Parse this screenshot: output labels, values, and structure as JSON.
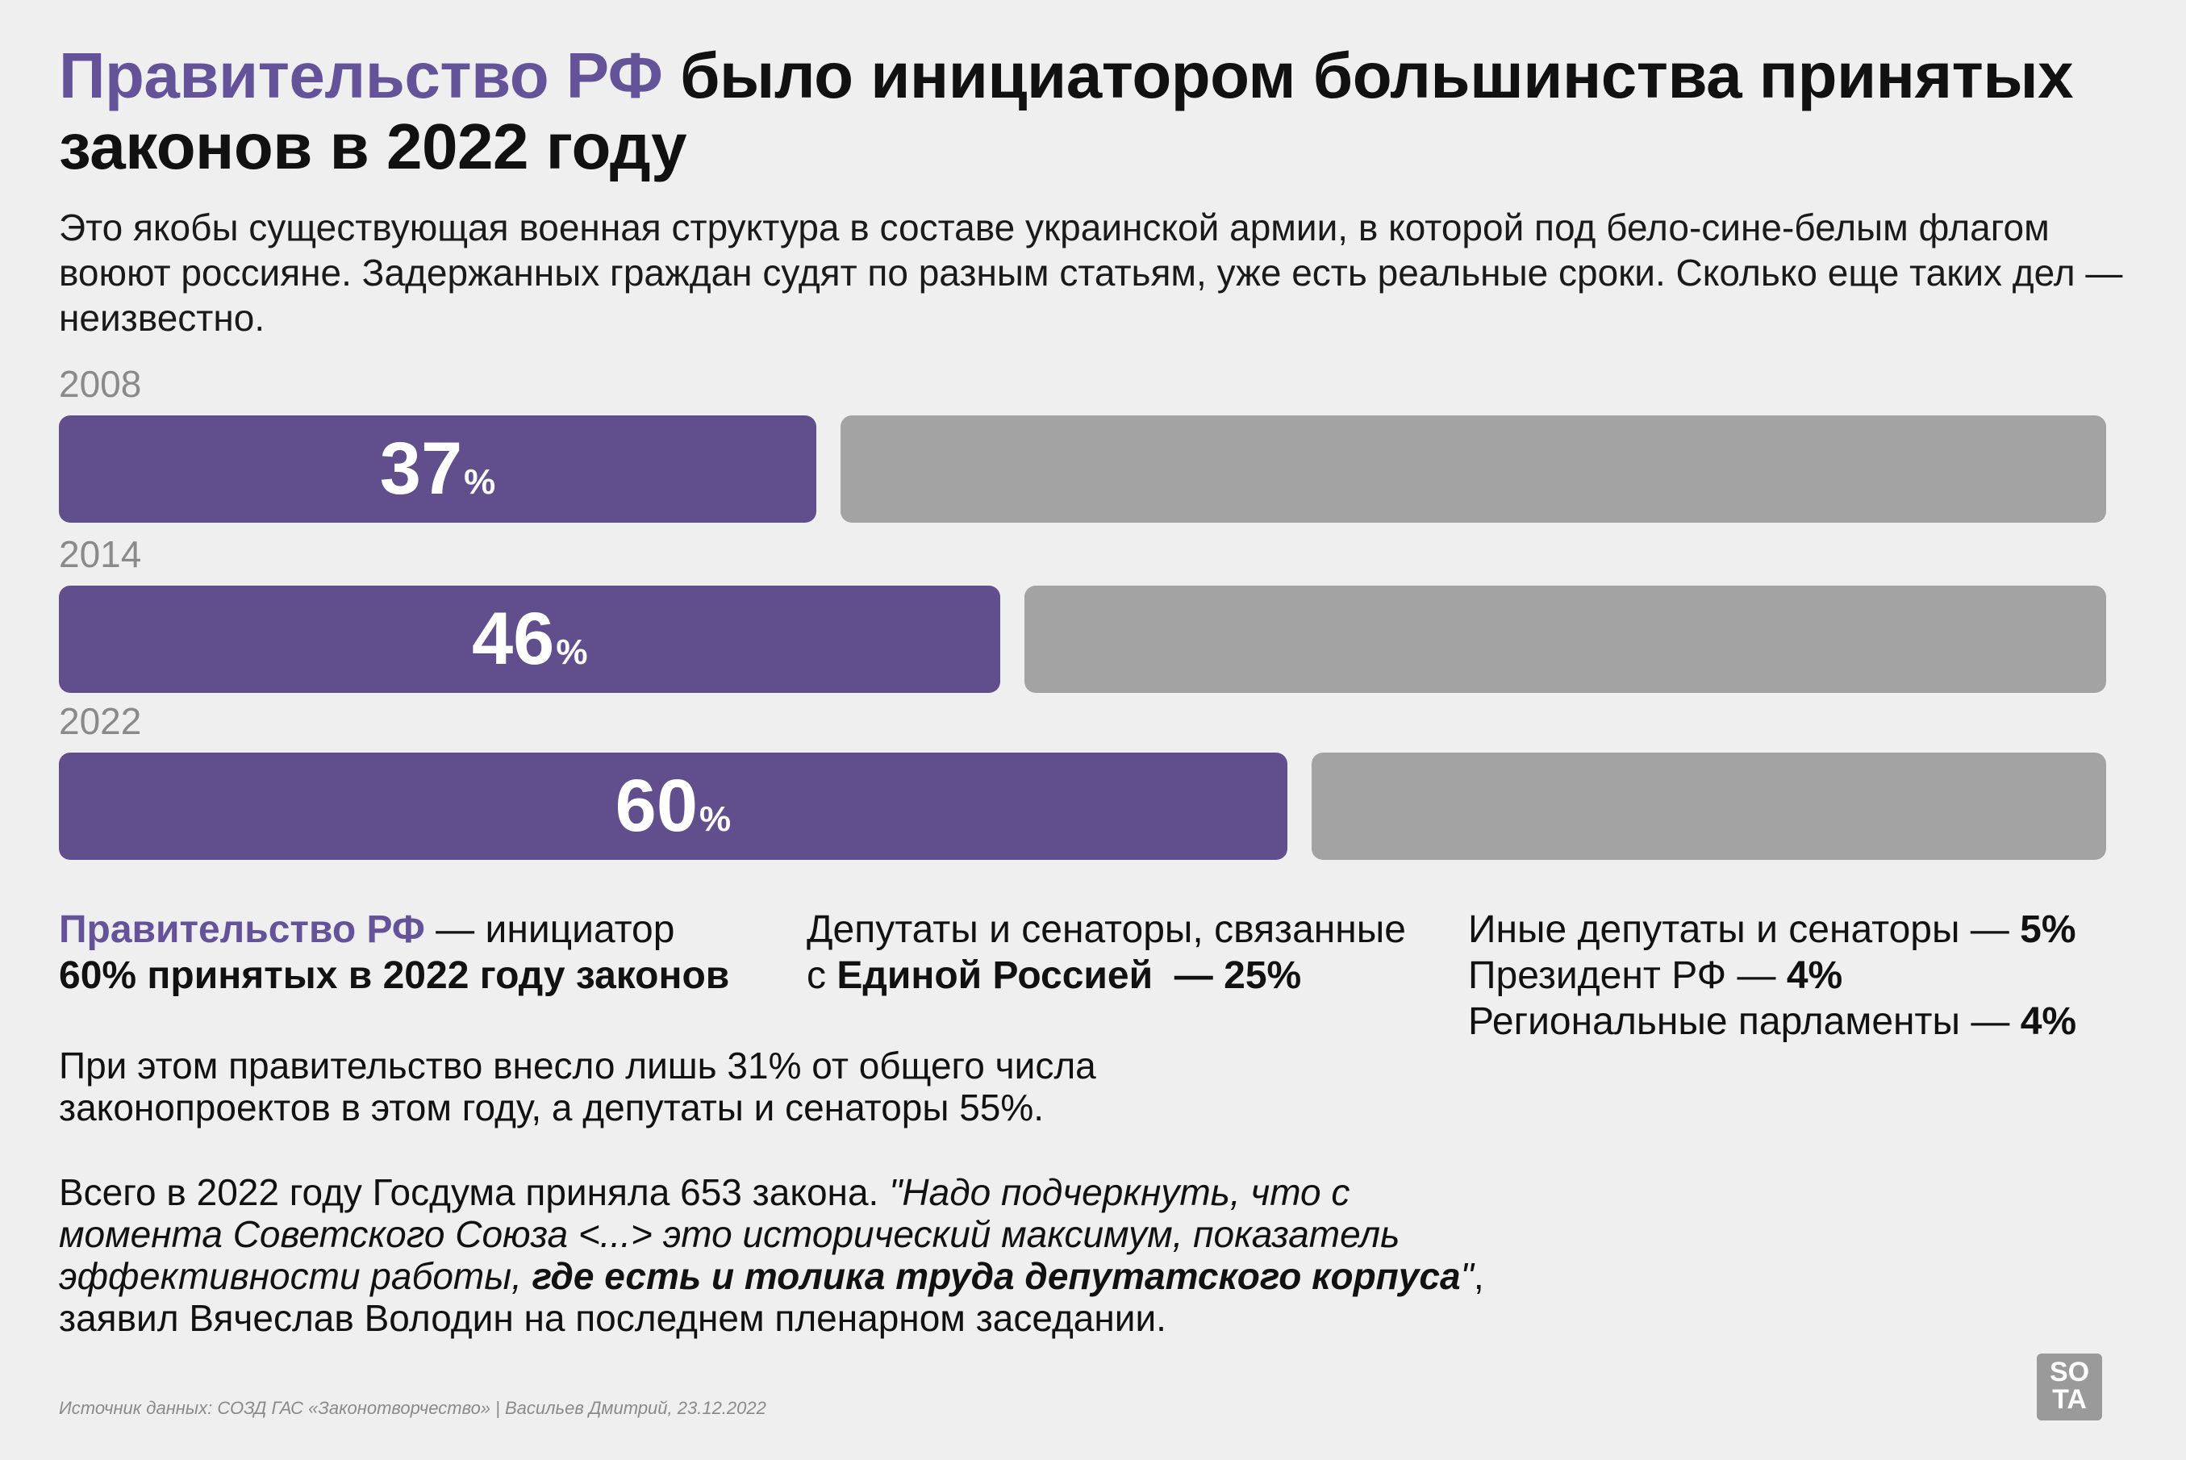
{
  "header": {
    "title_accent": "Правительство РФ",
    "title_rest": " было инициатором большинства принятых законов в 2022 году",
    "subtitle": "Это якобы существующая военная структура в составе украинской армии, в которой под бело-сине-белым флагом воюют россияне. Задержанных граждан судят по разным статьям, уже есть реальные сроки. Сколько еще таких дел — неизвестно."
  },
  "chart_data": {
    "type": "bar",
    "orientation": "horizontal-stacked-100",
    "categories": [
      "2008",
      "2014",
      "2022"
    ],
    "values": [
      37,
      46,
      60
    ],
    "unit": "%",
    "max": 100,
    "colors": {
      "share": "#614e8c",
      "rest": "#a3a3a3"
    }
  },
  "legend": {
    "col1": {
      "accent": "Правительство РФ",
      "text": " — инициатор",
      "bold_line": "60% принятых в 2022 году законов"
    },
    "col2": {
      "line1": "Депутаты и сенаторы, связанные",
      "prefix": "с ",
      "bold": "Единой Россией",
      "suffix": "  — 25%"
    },
    "col3": [
      {
        "label": "Иные депутаты и сенаторы — ",
        "value": "5%"
      },
      {
        "label": "Президент РФ — ",
        "value": "4%"
      },
      {
        "label": "Региональные парламенты — ",
        "value": "4%"
      }
    ]
  },
  "notes": {
    "p1": "При этом правительство внесло лишь 31% от общего числа законопроектов в этом году, а депутаты и сенаторы 55%.",
    "p2_plain": "Всего в 2022 году Госдума приняла 653 закона. ",
    "p2_italic": "\"Надо подчеркнуть, что с момента Советского Союза <...> это исторический максимум, показатель эффективности работы, ",
    "p2_bold_italic": "где есть и толика труда депутатского корпуса",
    "p2_end_italic": "\"",
    "p2_tail": ", заявил Вячеслав Володин на последнем пленарном заседании."
  },
  "footer": {
    "source": "Источник данных: СОЗД ГАС «Законотворчество» | Васильев Дмитрий, 23.12.2022"
  },
  "logo": {
    "text_top": "SO",
    "text_bottom": "TA"
  }
}
